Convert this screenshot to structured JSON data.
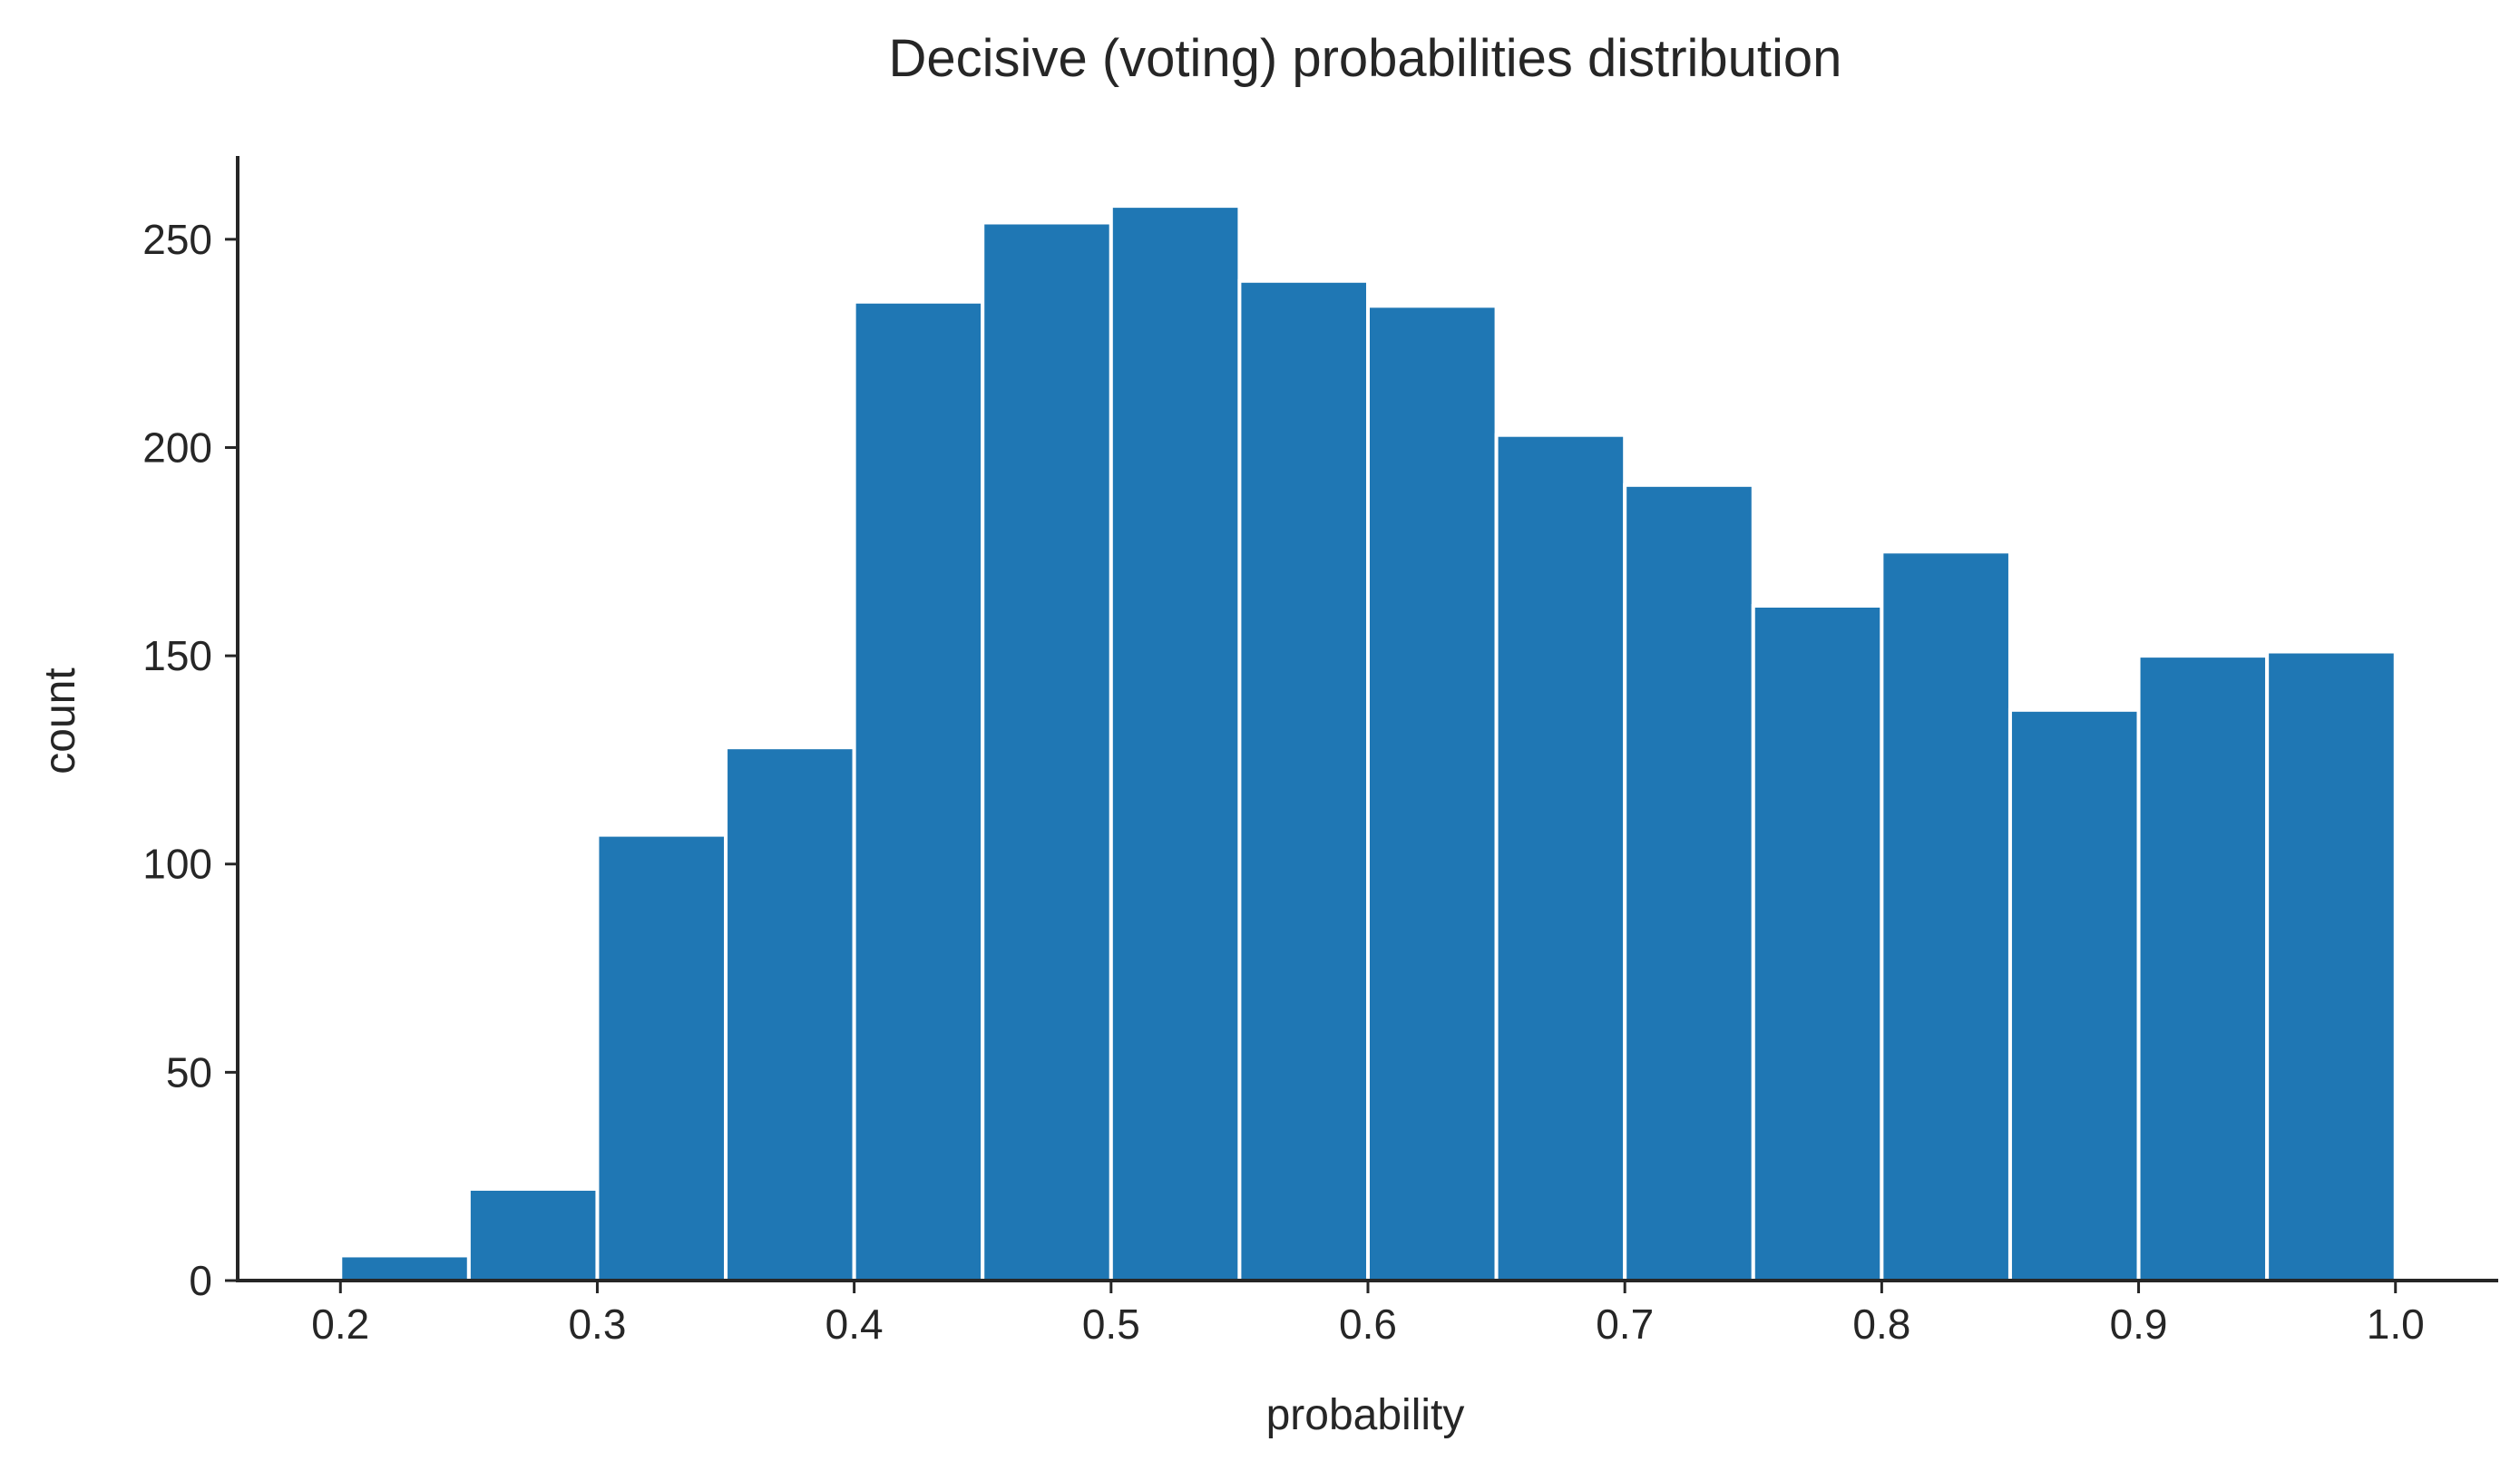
{
  "chart_data": {
    "type": "bar",
    "title": "Decisive (voting) probabilities distribution",
    "xlabel": "probability",
    "ylabel": "count",
    "bin_edges": [
      0.2,
      0.25,
      0.3,
      0.35,
      0.4,
      0.45,
      0.5,
      0.55,
      0.6,
      0.65,
      0.7,
      0.75,
      0.8,
      0.85,
      0.9,
      0.95,
      1.0
    ],
    "values": [
      6,
      22,
      107,
      128,
      235,
      254,
      258,
      240,
      234,
      203,
      191,
      162,
      175,
      137,
      150,
      151
    ],
    "xlim": [
      0.16,
      1.04
    ],
    "ylim": [
      0,
      270
    ],
    "x_ticks": [
      "0.2",
      "0.3",
      "0.4",
      "0.5",
      "0.6",
      "0.7",
      "0.8",
      "0.9",
      "1.0"
    ],
    "x_tick_values": [
      0.2,
      0.3,
      0.4,
      0.5,
      0.6,
      0.7,
      0.8,
      0.9,
      1.0
    ],
    "y_ticks": [
      "0",
      "50",
      "100",
      "150",
      "200",
      "250"
    ],
    "y_tick_values": [
      0,
      50,
      100,
      150,
      200,
      250
    ],
    "grid": false,
    "bar_color": "#1f77b4",
    "edge_color": "#ffffff",
    "axis_color": "#262626"
  }
}
